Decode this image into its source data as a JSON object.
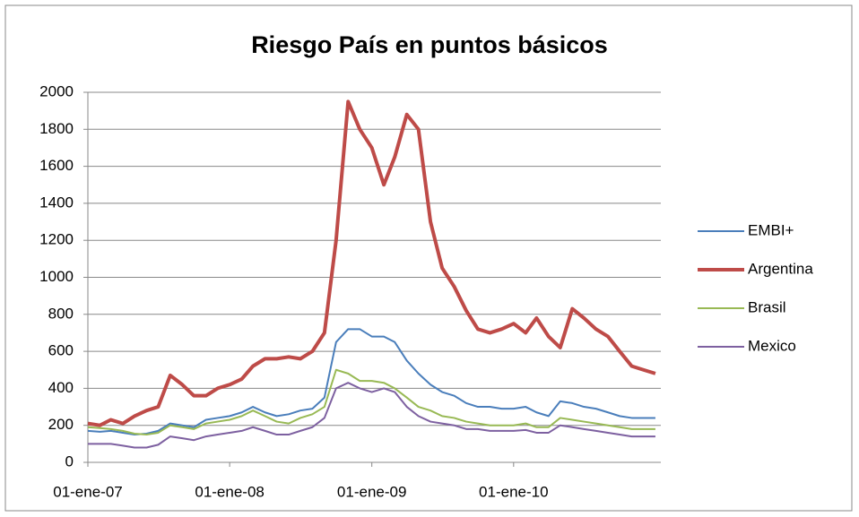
{
  "chart_data": {
    "type": "line",
    "title": "Riesgo País en puntos básicos",
    "x": [
      "2007-01-01",
      "2007-02-01",
      "2007-03-01",
      "2007-04-01",
      "2007-05-01",
      "2007-06-01",
      "2007-07-01",
      "2007-08-01",
      "2007-09-01",
      "2007-10-01",
      "2007-11-01",
      "2007-12-01",
      "2008-01-01",
      "2008-02-01",
      "2008-03-01",
      "2008-04-01",
      "2008-05-01",
      "2008-06-01",
      "2008-07-01",
      "2008-08-01",
      "2008-09-01",
      "2008-10-01",
      "2008-11-01",
      "2008-12-01",
      "2009-01-01",
      "2009-02-01",
      "2009-03-01",
      "2009-04-01",
      "2009-05-01",
      "2009-06-01",
      "2009-07-01",
      "2009-08-01",
      "2009-09-01",
      "2009-10-01",
      "2009-11-01",
      "2009-12-01",
      "2010-01-01",
      "2010-02-01",
      "2010-03-01",
      "2010-04-01",
      "2010-05-01",
      "2010-06-01",
      "2010-07-01",
      "2010-08-01",
      "2010-09-01",
      "2010-10-01",
      "2010-11-01",
      "2010-12-01",
      "2011-01-01"
    ],
    "series": [
      {
        "name": "EMBI+",
        "color": "#4a7ebb",
        "width": 2,
        "values": [
          170,
          165,
          170,
          160,
          150,
          155,
          170,
          210,
          200,
          190,
          230,
          240,
          250,
          270,
          300,
          270,
          250,
          260,
          280,
          290,
          350,
          650,
          720,
          720,
          680,
          680,
          650,
          550,
          480,
          420,
          380,
          360,
          320,
          300,
          300,
          290,
          290,
          300,
          270,
          250,
          330,
          320,
          300,
          290,
          270,
          250,
          240,
          240,
          240
        ]
      },
      {
        "name": "Argentina",
        "color": "#be4b48",
        "width": 4,
        "values": [
          210,
          200,
          230,
          210,
          250,
          280,
          300,
          470,
          420,
          360,
          360,
          400,
          420,
          450,
          520,
          560,
          560,
          570,
          560,
          600,
          700,
          1200,
          1950,
          1800,
          1700,
          1500,
          1650,
          1880,
          1800,
          1300,
          1050,
          950,
          820,
          720,
          700,
          720,
          750,
          700,
          780,
          680,
          620,
          830,
          780,
          720,
          680,
          600,
          520,
          500,
          480
        ]
      },
      {
        "name": "Brasil",
        "color": "#98b954",
        "width": 2,
        "values": [
          190,
          185,
          180,
          170,
          155,
          150,
          160,
          200,
          190,
          180,
          210,
          220,
          230,
          250,
          280,
          250,
          220,
          210,
          240,
          260,
          300,
          500,
          480,
          440,
          440,
          430,
          400,
          350,
          300,
          280,
          250,
          240,
          220,
          210,
          200,
          200,
          200,
          210,
          190,
          190,
          240,
          230,
          220,
          210,
          200,
          190,
          180,
          180,
          180
        ]
      },
      {
        "name": "Mexico",
        "color": "#7d60a0",
        "width": 2,
        "values": [
          100,
          100,
          100,
          90,
          80,
          80,
          95,
          140,
          130,
          120,
          140,
          150,
          160,
          170,
          190,
          170,
          150,
          150,
          170,
          190,
          240,
          400,
          430,
          400,
          380,
          400,
          380,
          300,
          250,
          220,
          210,
          200,
          180,
          180,
          170,
          170,
          170,
          175,
          160,
          160,
          200,
          190,
          180,
          170,
          160,
          150,
          140,
          140,
          140
        ]
      }
    ],
    "xlim": [
      "2007-01-01",
      "2011-01-15"
    ],
    "xticks": [
      {
        "value": "2007-01-01",
        "label": "01-ene-07"
      },
      {
        "value": "2008-01-01",
        "label": "01-ene-08"
      },
      {
        "value": "2009-01-01",
        "label": "01-ene-09"
      },
      {
        "value": "2010-01-01",
        "label": "01-ene-10"
      }
    ],
    "ylim": [
      0,
      2000
    ],
    "yticks": [
      0,
      200,
      400,
      600,
      800,
      1000,
      1200,
      1400,
      1600,
      1800,
      2000
    ],
    "grid": true,
    "legend": "right"
  }
}
